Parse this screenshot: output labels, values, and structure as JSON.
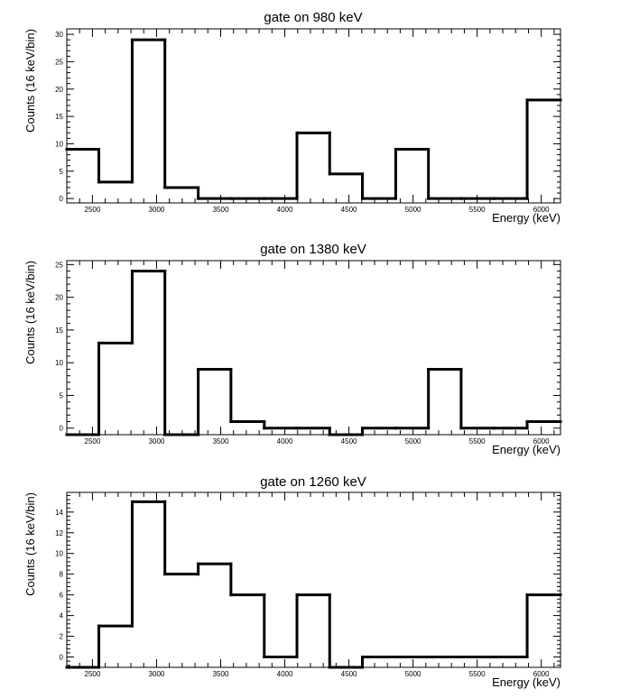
{
  "chart_data": [
    {
      "type": "histogram",
      "title": "gate on 980 keV",
      "xlabel": "Energy (keV)",
      "ylabel": "Counts (16 keV/bin)",
      "xlim": [
        2300,
        6150
      ],
      "ylim": [
        -0.8,
        31
      ],
      "x_ticks": [
        2500,
        3000,
        3500,
        4000,
        4500,
        5000,
        5500,
        6000
      ],
      "y_ticks": [
        0,
        5,
        10,
        15,
        20,
        25,
        30
      ],
      "bin_edges": [
        2300,
        2550,
        2810,
        3065,
        3325,
        3580,
        3840,
        4095,
        4350,
        4605,
        4865,
        5120,
        5375,
        5630,
        5890,
        6150
      ],
      "values": [
        9,
        3,
        29,
        2,
        0,
        0,
        0,
        12,
        4.5,
        0,
        9,
        0,
        0,
        0,
        18
      ],
      "grid": false,
      "color": "#000000"
    },
    {
      "type": "histogram",
      "title": "gate on 1380 keV",
      "xlabel": "Energy (keV)",
      "ylabel": "Counts (16 keV/bin)",
      "xlim": [
        2300,
        6150
      ],
      "ylim": [
        -1.0,
        25.6
      ],
      "x_ticks": [
        2500,
        3000,
        3500,
        4000,
        4500,
        5000,
        5500,
        6000
      ],
      "y_ticks": [
        0,
        5,
        10,
        15,
        20,
        25
      ],
      "bin_edges": [
        2300,
        2550,
        2810,
        3065,
        3325,
        3580,
        3840,
        4095,
        4350,
        4605,
        4865,
        5120,
        5375,
        5630,
        5890,
        6150
      ],
      "values": [
        -1,
        13,
        24,
        -1,
        9,
        1,
        0,
        0,
        -1,
        0,
        0,
        9,
        0,
        0,
        1
      ],
      "grid": false,
      "color": "#000000"
    },
    {
      "type": "histogram",
      "title": "gate on 1260 keV",
      "xlabel": "Energy (keV)",
      "ylabel": "Counts (16 keV/bin)",
      "xlim": [
        2300,
        6150
      ],
      "ylim": [
        -1.0,
        15.9
      ],
      "x_ticks": [
        2500,
        3000,
        3500,
        4000,
        4500,
        5000,
        5500,
        6000
      ],
      "y_ticks": [
        0,
        2,
        4,
        6,
        8,
        10,
        12,
        14
      ],
      "bin_edges": [
        2300,
        2550,
        2810,
        3065,
        3325,
        3580,
        3840,
        4095,
        4350,
        4605,
        4865,
        5120,
        5375,
        5630,
        5890,
        6150
      ],
      "values": [
        -1,
        3,
        15,
        8,
        9,
        6,
        0,
        6,
        -1,
        0,
        0,
        0,
        0,
        0,
        6
      ],
      "grid": false,
      "color": "#000000"
    }
  ]
}
